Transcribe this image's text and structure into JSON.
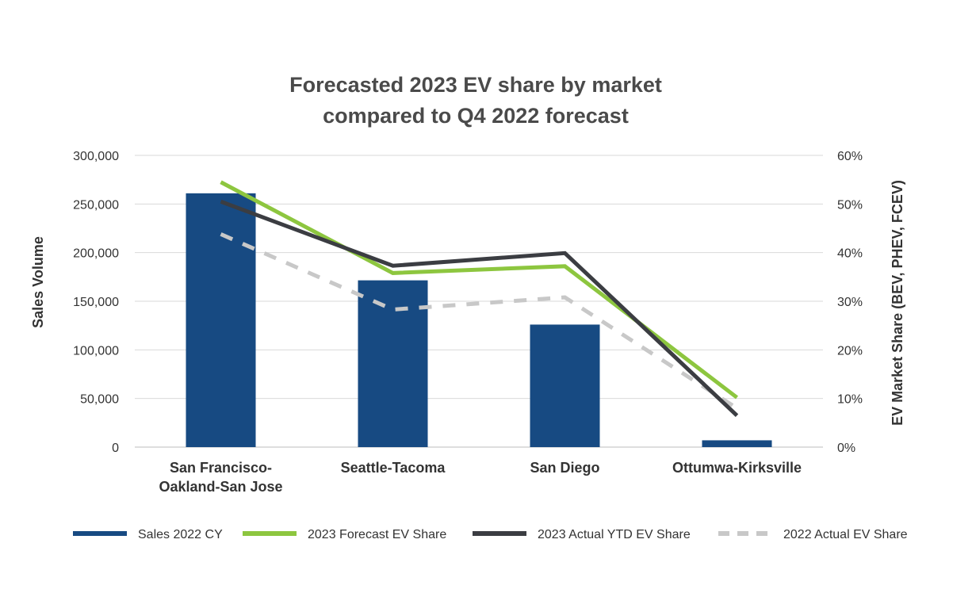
{
  "chart_data": {
    "type": "bar",
    "title_lines": [
      "Forecasted 2023 EV share by market",
      "compared to Q4 2022 forecast"
    ],
    "categories": [
      [
        "San Francisco-",
        "Oakland-San Jose"
      ],
      [
        "Seattle-Tacoma"
      ],
      [
        "San Diego"
      ],
      [
        "Ottumwa-Kirksville"
      ]
    ],
    "ylabel_left": "Sales Volume",
    "ylabel_right": "EV Market Share (BEV, PHEV, FCEV)",
    "ylim_left": [
      0,
      300000
    ],
    "ylim_right": [
      0,
      60
    ],
    "left_ticks": [
      "0",
      "50,000",
      "100,000",
      "150,000",
      "200,000",
      "250,000",
      "300,000"
    ],
    "right_ticks": [
      "0%",
      "10%",
      "20%",
      "30%",
      "40%",
      "50%",
      "60%"
    ],
    "grid": true,
    "legend_position": "bottom",
    "series": [
      {
        "name": "Sales 2022 CY",
        "kind": "bar",
        "axis": "left",
        "color": "#174a82",
        "values": [
          261000,
          171500,
          126000,
          7000
        ]
      },
      {
        "name": "2023 Forecast EV Share",
        "kind": "line",
        "axis": "right",
        "color": "#8dc63f",
        "dash": false,
        "values": [
          54.5,
          35.8,
          37.2,
          10.2
        ]
      },
      {
        "name": "2023 Actual YTD EV Share",
        "kind": "line",
        "axis": "right",
        "color": "#3b3d42",
        "dash": false,
        "values": [
          50.5,
          37.3,
          39.9,
          6.5
        ]
      },
      {
        "name": "2022 Actual EV Share",
        "kind": "line",
        "axis": "right",
        "color": "#c8c8c8",
        "dash": true,
        "values": [
          43.8,
          28.3,
          30.8,
          8.0
        ]
      }
    ]
  }
}
